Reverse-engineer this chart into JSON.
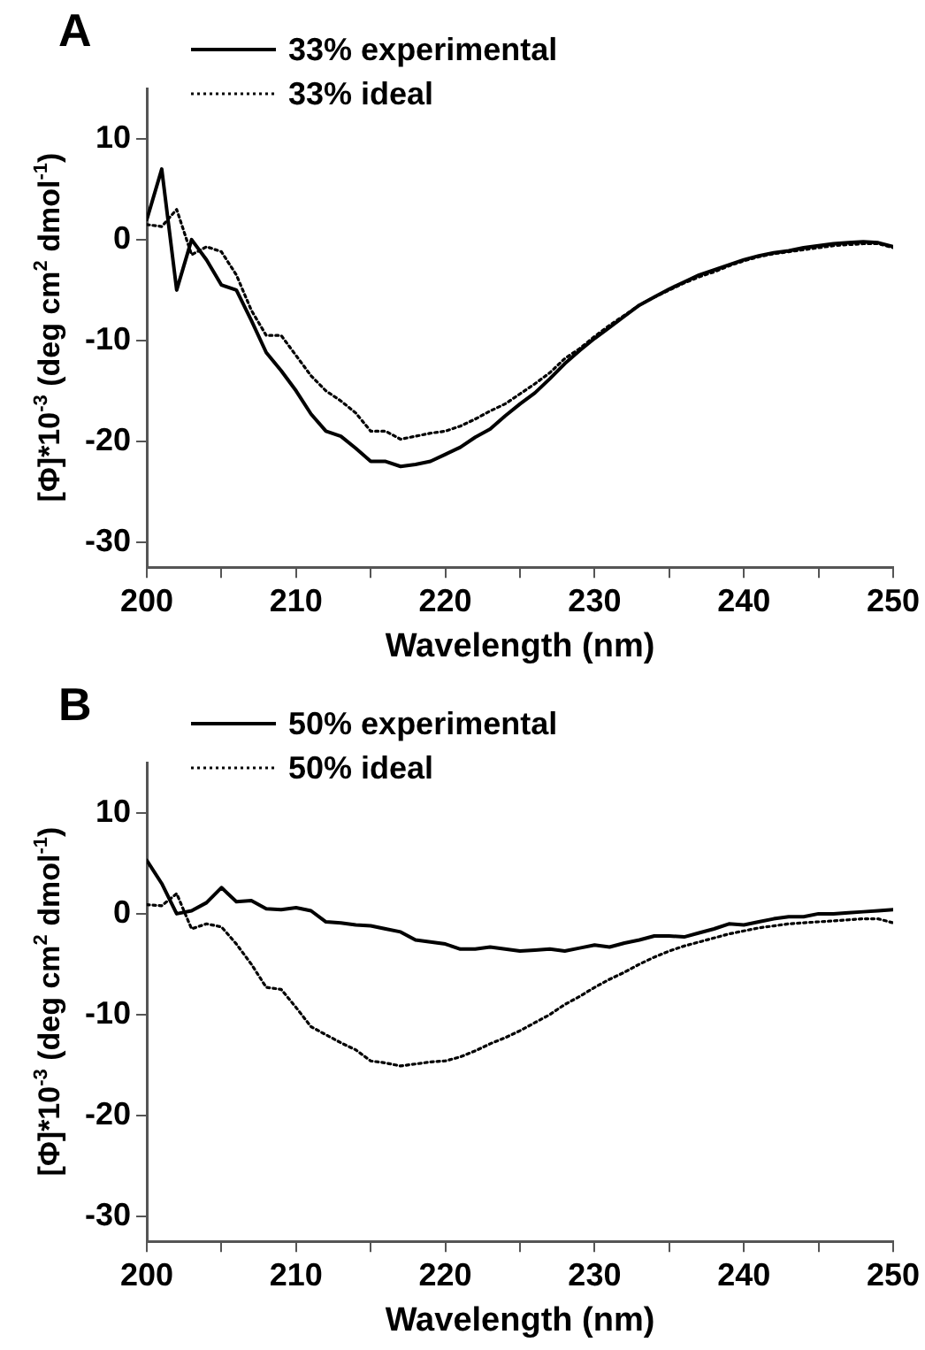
{
  "chart_data": [
    {
      "type": "line",
      "title": "A",
      "xlabel": "Wavelength (nm)",
      "ylabel": "[Φ]*10$^{-3}$ (deg cm$^{2}$ dmol$^{-1}$)",
      "x": [
        200,
        201,
        202,
        203,
        204,
        205,
        206,
        207,
        208,
        209,
        210,
        211,
        212,
        213,
        214,
        215,
        216,
        217,
        218,
        219,
        220,
        221,
        222,
        223,
        224,
        225,
        226,
        227,
        228,
        229,
        230,
        231,
        232,
        233,
        234,
        235,
        236,
        237,
        238,
        239,
        240,
        241,
        242,
        243,
        244,
        245,
        246,
        247,
        248,
        249,
        250
      ],
      "series": [
        {
          "name": "33% experimental",
          "color": "#000000",
          "line_style": "solid",
          "values": [
            2,
            7,
            -5,
            0,
            -2,
            -4.5,
            -5,
            -8,
            -11.2,
            -13,
            -15,
            -17.3,
            -19,
            -19.5,
            -20.7,
            -22,
            -22,
            -22.5,
            -22.3,
            -22,
            -21.3,
            -20.6,
            -19.6,
            -18.8,
            -17.5,
            -16.3,
            -15.2,
            -13.8,
            -12.3,
            -11,
            -9.8,
            -8.7,
            -7.6,
            -6.5,
            -5.7,
            -4.9,
            -4.2,
            -3.5,
            -3,
            -2.5,
            -2,
            -1.6,
            -1.3,
            -1.1,
            -0.8,
            -0.6,
            -0.4,
            -0.3,
            -0.2,
            -0.3,
            -0.7
          ]
        },
        {
          "name": "33% ideal",
          "color": "#000000",
          "line_style": "dotted",
          "values": [
            1.5,
            1.3,
            3,
            -1.5,
            -0.7,
            -1.2,
            -3.5,
            -7,
            -9.5,
            -9.5,
            -11.5,
            -13.5,
            -15,
            -16,
            -17.2,
            -19,
            -19,
            -19.8,
            -19.5,
            -19.2,
            -19,
            -18.5,
            -17.8,
            -17,
            -16.3,
            -15.3,
            -14.3,
            -13.2,
            -11.8,
            -10.8,
            -9.6,
            -8.5,
            -7.5,
            -6.5,
            -5.7,
            -5,
            -4.3,
            -3.7,
            -3.2,
            -2.6,
            -2.1,
            -1.7,
            -1.4,
            -1.2,
            -1,
            -0.8,
            -0.6,
            -0.5,
            -0.4,
            -0.4,
            -0.8
          ]
        }
      ],
      "xlim": [
        200,
        250
      ],
      "xticks": [
        200,
        {
          "value": 205,
          "label": null
        },
        210,
        {
          "value": 215,
          "label": null
        },
        220,
        {
          "value": 225,
          "label": null
        },
        230,
        {
          "value": 235,
          "label": null
        },
        240,
        {
          "value": 245,
          "label": null
        },
        250
      ],
      "ylim": [
        -32.5,
        15
      ],
      "yticks": [
        -30,
        -20,
        -10,
        0,
        10
      ],
      "grid": false,
      "legend": "top left",
      "marker": "none"
    },
    {
      "type": "line",
      "title": "B",
      "xlabel": "Wavelength (nm)",
      "ylabel": "[Φ]*10$^{-3}$ (deg cm$^{2}$ dmol$^{-1}$)",
      "x": [
        200,
        201,
        202,
        203,
        204,
        205,
        206,
        207,
        208,
        209,
        210,
        211,
        212,
        213,
        214,
        215,
        216,
        217,
        218,
        219,
        220,
        221,
        222,
        223,
        224,
        225,
        226,
        227,
        228,
        229,
        230,
        231,
        232,
        233,
        234,
        235,
        236,
        237,
        238,
        239,
        240,
        241,
        242,
        243,
        244,
        245,
        246,
        247,
        248,
        249,
        250
      ],
      "series": [
        {
          "name": "50% experimental",
          "color": "#000000",
          "line_style": "solid",
          "values": [
            5.3,
            3,
            0,
            0.3,
            1.1,
            2.6,
            1.2,
            1.3,
            0.5,
            0.4,
            0.6,
            0.3,
            -0.8,
            -0.9,
            -1.1,
            -1.2,
            -1.5,
            -1.8,
            -2.6,
            -2.8,
            -3,
            -3.5,
            -3.5,
            -3.3,
            -3.5,
            -3.7,
            -3.6,
            -3.5,
            -3.7,
            -3.4,
            -3.1,
            -3.3,
            -2.9,
            -2.6,
            -2.2,
            -2.2,
            -2.3,
            -1.9,
            -1.5,
            -1,
            -1.1,
            -0.8,
            -0.5,
            -0.3,
            -0.3,
            0,
            0,
            0.1,
            0.2,
            0.3,
            0.4
          ]
        },
        {
          "name": "50% ideal",
          "color": "#000000",
          "line_style": "dotted",
          "values": [
            0.9,
            0.8,
            2,
            -1.5,
            -1,
            -1.3,
            -3,
            -5,
            -7.3,
            -7.5,
            -9.3,
            -11.2,
            -12,
            -12.8,
            -13.5,
            -14.6,
            -14.8,
            -15.1,
            -14.9,
            -14.7,
            -14.6,
            -14.2,
            -13.6,
            -12.9,
            -12.3,
            -11.6,
            -10.8,
            -10,
            -9,
            -8.2,
            -7.3,
            -6.5,
            -5.8,
            -5,
            -4.3,
            -3.7,
            -3.2,
            -2.8,
            -2.4,
            -2,
            -1.7,
            -1.4,
            -1.2,
            -1,
            -0.9,
            -0.8,
            -0.7,
            -0.6,
            -0.5,
            -0.5,
            -0.9
          ]
        }
      ],
      "xlim": [
        200,
        250
      ],
      "xticks": [
        200,
        {
          "value": 205,
          "label": null
        },
        210,
        {
          "value": 215,
          "label": null
        },
        220,
        {
          "value": 225,
          "label": null
        },
        230,
        {
          "value": 235,
          "label": null
        },
        240,
        {
          "value": 245,
          "label": null
        },
        250
      ],
      "ylim": [
        -32.5,
        15
      ],
      "yticks": [
        -30,
        -20,
        -10,
        0,
        10
      ],
      "grid": false,
      "legend": "top left",
      "marker": "none"
    }
  ]
}
